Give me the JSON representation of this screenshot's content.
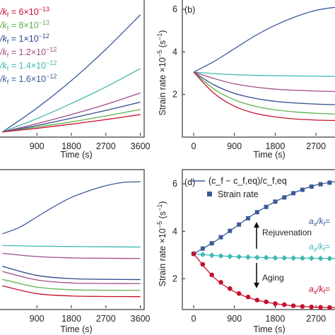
{
  "colors": {
    "blue": "#3a5a99",
    "cyan": "#3fb8b2",
    "purple": "#a04a88",
    "red": "#c8102e",
    "green": "#5fb04a",
    "navy": "#2e4a8c",
    "arrow": "#111111"
  },
  "chart_data": [
    {
      "type": "line",
      "panel": "a",
      "panel_label": "",
      "xlabel": "Time (s)",
      "ylabel": "",
      "xlim": [
        -100,
        3700
      ],
      "x_ticks": [
        "900",
        "1800",
        "2700",
        "3600"
      ],
      "y_ticks": [],
      "legend_placement": "top-left",
      "legend": [
        {
          "prefix": "/k",
          "sub": "f",
          "eq": " = 6×10",
          "exp": "−13",
          "color_key": "red"
        },
        {
          "prefix": "/k",
          "sub": "f",
          "eq": " = 8×10",
          "exp": "−13",
          "color_key": "green"
        },
        {
          "prefix": "/k",
          "sub": "f",
          "eq": " = 1×10",
          "exp": "−12",
          "color_key": "navy"
        },
        {
          "prefix": "/k",
          "sub": "f",
          "eq": " = 1.2×10",
          "exp": "−12",
          "color_key": "purple"
        },
        {
          "prefix": "/k",
          "sub": "f",
          "eq": " = 1.4×10",
          "exp": "−12",
          "color_key": "cyan"
        },
        {
          "prefix": "/k",
          "sub": "f",
          "eq": " = 1.6×10",
          "exp": "−12",
          "color_key": "blue"
        }
      ],
      "series": [
        {
          "color_key": "blue",
          "x": [
            0,
            900,
            1800,
            2700,
            3600
          ],
          "y": [
            0.0,
            0.52,
            1.12,
            1.8,
            2.55
          ]
        },
        {
          "color_key": "cyan",
          "x": [
            0,
            900,
            1800,
            2700,
            3600
          ],
          "y": [
            0.0,
            0.29,
            0.62,
            0.98,
            1.38
          ]
        },
        {
          "color_key": "purple",
          "x": [
            0,
            900,
            1800,
            2700,
            3600
          ],
          "y": [
            0.0,
            0.18,
            0.38,
            0.6,
            0.85
          ]
        },
        {
          "color_key": "navy",
          "x": [
            0,
            900,
            1800,
            2700,
            3600
          ],
          "y": [
            0.0,
            0.14,
            0.3,
            0.47,
            0.65
          ]
        },
        {
          "color_key": "green",
          "x": [
            0,
            900,
            1800,
            2700,
            3600
          ],
          "y": [
            0.0,
            0.11,
            0.22,
            0.35,
            0.49
          ]
        },
        {
          "color_key": "red",
          "x": [
            0,
            900,
            1800,
            2700,
            3600
          ],
          "y": [
            0.0,
            0.08,
            0.17,
            0.27,
            0.38
          ]
        }
      ]
    },
    {
      "type": "line",
      "panel": "b",
      "panel_label": "(b)",
      "xlabel": "Time (s)",
      "ylabel": "Strain rate ×10",
      "ylabel_exp": "−5",
      "ylabel_unit": " (s",
      "ylabel_unit_exp": "−1",
      "ylabel_close": ")",
      "xlim": [
        -250,
        3150
      ],
      "ylim": [
        0,
        6.5
      ],
      "x_ticks": [
        "0",
        "900",
        "1800",
        "2700"
      ],
      "y_ticks": [
        "2",
        "4",
        "6"
      ],
      "series": [
        {
          "color_key": "blue",
          "x": [
            0,
            450,
            900,
            1350,
            1800,
            2250,
            2700,
            3150
          ],
          "y": [
            3.05,
            3.55,
            4.15,
            4.75,
            5.25,
            5.65,
            5.95,
            6.1
          ]
        },
        {
          "color_key": "cyan",
          "x": [
            0,
            450,
            900,
            1350,
            1800,
            2250,
            2700,
            3150
          ],
          "y": [
            3.05,
            2.98,
            2.93,
            2.9,
            2.88,
            2.87,
            2.86,
            2.85
          ]
        },
        {
          "color_key": "purple",
          "x": [
            0,
            450,
            900,
            1350,
            1800,
            2250,
            2700,
            3150
          ],
          "y": [
            3.05,
            2.75,
            2.5,
            2.35,
            2.25,
            2.2,
            2.16,
            2.14
          ]
        },
        {
          "color_key": "navy",
          "x": [
            0,
            450,
            900,
            1350,
            1800,
            2250,
            2700,
            3150
          ],
          "y": [
            3.05,
            2.45,
            2.05,
            1.82,
            1.68,
            1.6,
            1.55,
            1.52
          ]
        },
        {
          "color_key": "green",
          "x": [
            0,
            450,
            900,
            1350,
            1800,
            2250,
            2700,
            3150
          ],
          "y": [
            3.05,
            2.25,
            1.75,
            1.45,
            1.28,
            1.18,
            1.12,
            1.08
          ]
        },
        {
          "color_key": "red",
          "x": [
            0,
            450,
            900,
            1350,
            1800,
            2250,
            2700,
            3150
          ],
          "y": [
            3.05,
            2.05,
            1.45,
            1.12,
            0.95,
            0.85,
            0.8,
            0.78
          ]
        }
      ]
    },
    {
      "type": "line",
      "panel": "c",
      "panel_label": "",
      "xlabel": "Time (s)",
      "ylabel": "",
      "xlim": [
        -100,
        3700
      ],
      "x_ticks": [
        "900",
        "1800",
        "2700",
        "3600"
      ],
      "y_ticks": [],
      "series": [
        {
          "color_key": "blue",
          "x": [
            0,
            450,
            900,
            1350,
            1800,
            2250,
            2700,
            3150,
            3600
          ],
          "y": [
            0.55,
            0.6,
            0.68,
            0.76,
            0.83,
            0.88,
            0.92,
            0.945,
            0.95
          ]
        },
        {
          "color_key": "cyan",
          "x": [
            0,
            900,
            1800,
            2700,
            3600
          ],
          "y": [
            0.46,
            0.455,
            0.452,
            0.45,
            0.448
          ]
        },
        {
          "color_key": "purple",
          "x": [
            0,
            900,
            1800,
            2700,
            3600
          ],
          "y": [
            0.4,
            0.375,
            0.365,
            0.362,
            0.36
          ]
        },
        {
          "color_key": "navy",
          "x": [
            0,
            900,
            1800,
            2700,
            3600
          ],
          "y": [
            0.3,
            0.23,
            0.205,
            0.2,
            0.198
          ]
        },
        {
          "color_key": "purple",
          "x": [
            0,
            900,
            1800,
            2700,
            3600
          ],
          "y": [
            0.26,
            0.195,
            0.172,
            0.168,
            0.167
          ]
        },
        {
          "color_key": "green",
          "x": [
            0,
            900,
            1800,
            2700,
            3600
          ],
          "y": [
            0.2,
            0.14,
            0.12,
            0.116,
            0.115
          ]
        },
        {
          "color_key": "red",
          "x": [
            0,
            900,
            1800,
            2700,
            3600
          ],
          "y": [
            0.15,
            0.09,
            0.072,
            0.068,
            0.067
          ]
        }
      ]
    },
    {
      "type": "line",
      "panel": "d",
      "panel_label": "(d)",
      "xlabel": "Time (s)",
      "ylabel": "Strain rate ×10",
      "ylabel_exp": "−5",
      "ylabel_unit": " (s",
      "ylabel_unit_exp": "−1",
      "ylabel_close": ")",
      "xlim": [
        -250,
        3150
      ],
      "ylim": [
        0.7,
        6.6
      ],
      "x_ticks": [
        "0",
        "900",
        "1800",
        "2700"
      ],
      "y_ticks": [
        "2",
        "4",
        "6"
      ],
      "legend_line_text": "(c_f − c_f,eq)/c_f,eq",
      "legend_marker_text": "Strain rate",
      "annotations": {
        "rejuvenation": "Rejuvenation",
        "aging": "Aging"
      },
      "side_labels": [
        {
          "prefix": "a",
          "sub": "x",
          "mid": "/k",
          "sub2": "f",
          "tail": "=",
          "color_key": "blue"
        },
        {
          "prefix": "a",
          "sub": "x",
          "mid": "/k",
          "sub2": "f",
          "tail": "=",
          "color_key": "cyan"
        },
        {
          "prefix": "a",
          "sub": "x",
          "mid": "/k",
          "sub2": "f",
          "tail": "=",
          "color_key": "red"
        }
      ],
      "series": [
        {
          "name": "curve",
          "color_key": "blue",
          "marker": "square",
          "x": [
            0,
            450,
            900,
            1350,
            1800,
            2250,
            2700,
            3150
          ],
          "y": [
            3.05,
            3.55,
            4.15,
            4.75,
            5.25,
            5.65,
            5.95,
            6.1
          ]
        },
        {
          "name": "curve",
          "color_key": "cyan",
          "marker": "diamond",
          "x": [
            0,
            450,
            900,
            1350,
            1800,
            2250,
            2700,
            3150
          ],
          "y": [
            3.05,
            2.98,
            2.93,
            2.9,
            2.88,
            2.87,
            2.86,
            2.85
          ]
        },
        {
          "name": "curve",
          "color_key": "red",
          "marker": "circle",
          "x": [
            0,
            450,
            900,
            1350,
            1800,
            2250,
            2700,
            3150
          ],
          "y": [
            3.05,
            2.05,
            1.45,
            1.12,
            0.95,
            0.85,
            0.8,
            0.78
          ]
        }
      ],
      "marker_x": [
        0,
        200,
        400,
        600,
        800,
        1000,
        1200,
        1400,
        1600,
        1800,
        2000,
        2200,
        2400,
        2600,
        2800,
        3000
      ]
    }
  ]
}
